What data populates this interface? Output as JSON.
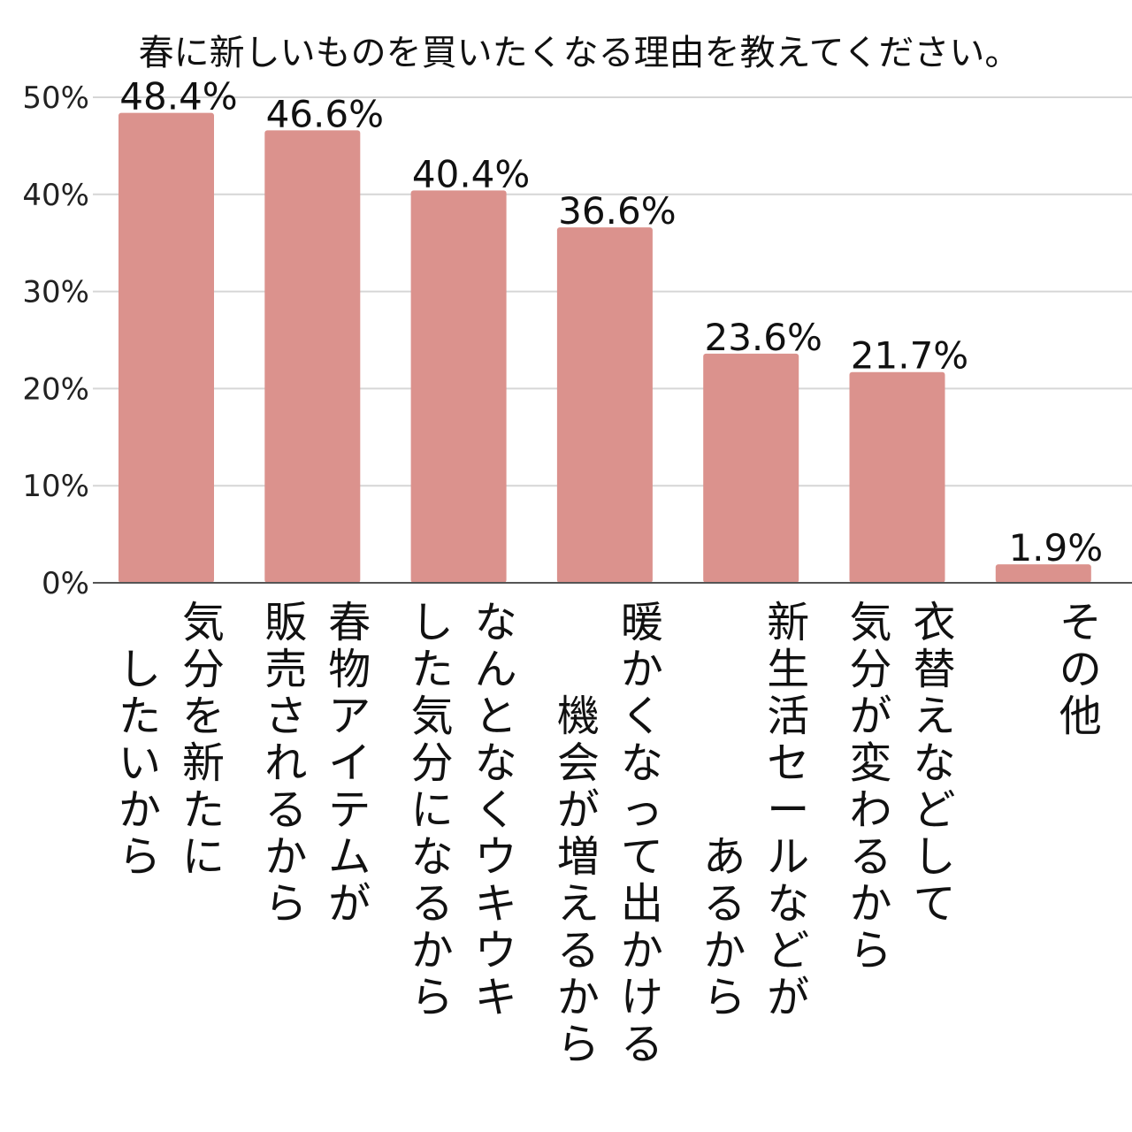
{
  "chart_data": {
    "type": "bar",
    "title": "春に新しいものを買いたくなる理由を教えてください。",
    "xlabel": "",
    "ylabel": "",
    "ylim": [
      0,
      50
    ],
    "y_ticks": [
      "0%",
      "10%",
      "20%",
      "30%",
      "40%",
      "50%"
    ],
    "y_tick_values": [
      0,
      10,
      20,
      30,
      40,
      50
    ],
    "grid": true,
    "legend": "none",
    "bar_color": "#db928d",
    "categories": [
      [
        "気分を新たに",
        "したいから"
      ],
      [
        "春物アイテムが",
        "販売されるから"
      ],
      [
        "なんとなくウキウキ",
        "した気分になるから"
      ],
      [
        "暖かくなって出かける",
        "機会が増えるから"
      ],
      [
        "新生活セールなどが",
        "あるから"
      ],
      [
        "衣替えなどして",
        "気分が変わるから"
      ],
      [
        "その他"
      ]
    ],
    "values": [
      48.4,
      46.6,
      40.4,
      36.6,
      23.6,
      21.7,
      1.9
    ],
    "value_labels": [
      "48.4%",
      "46.6%",
      "40.4%",
      "36.6%",
      "23.6%",
      "21.7%",
      "1.9%"
    ]
  }
}
